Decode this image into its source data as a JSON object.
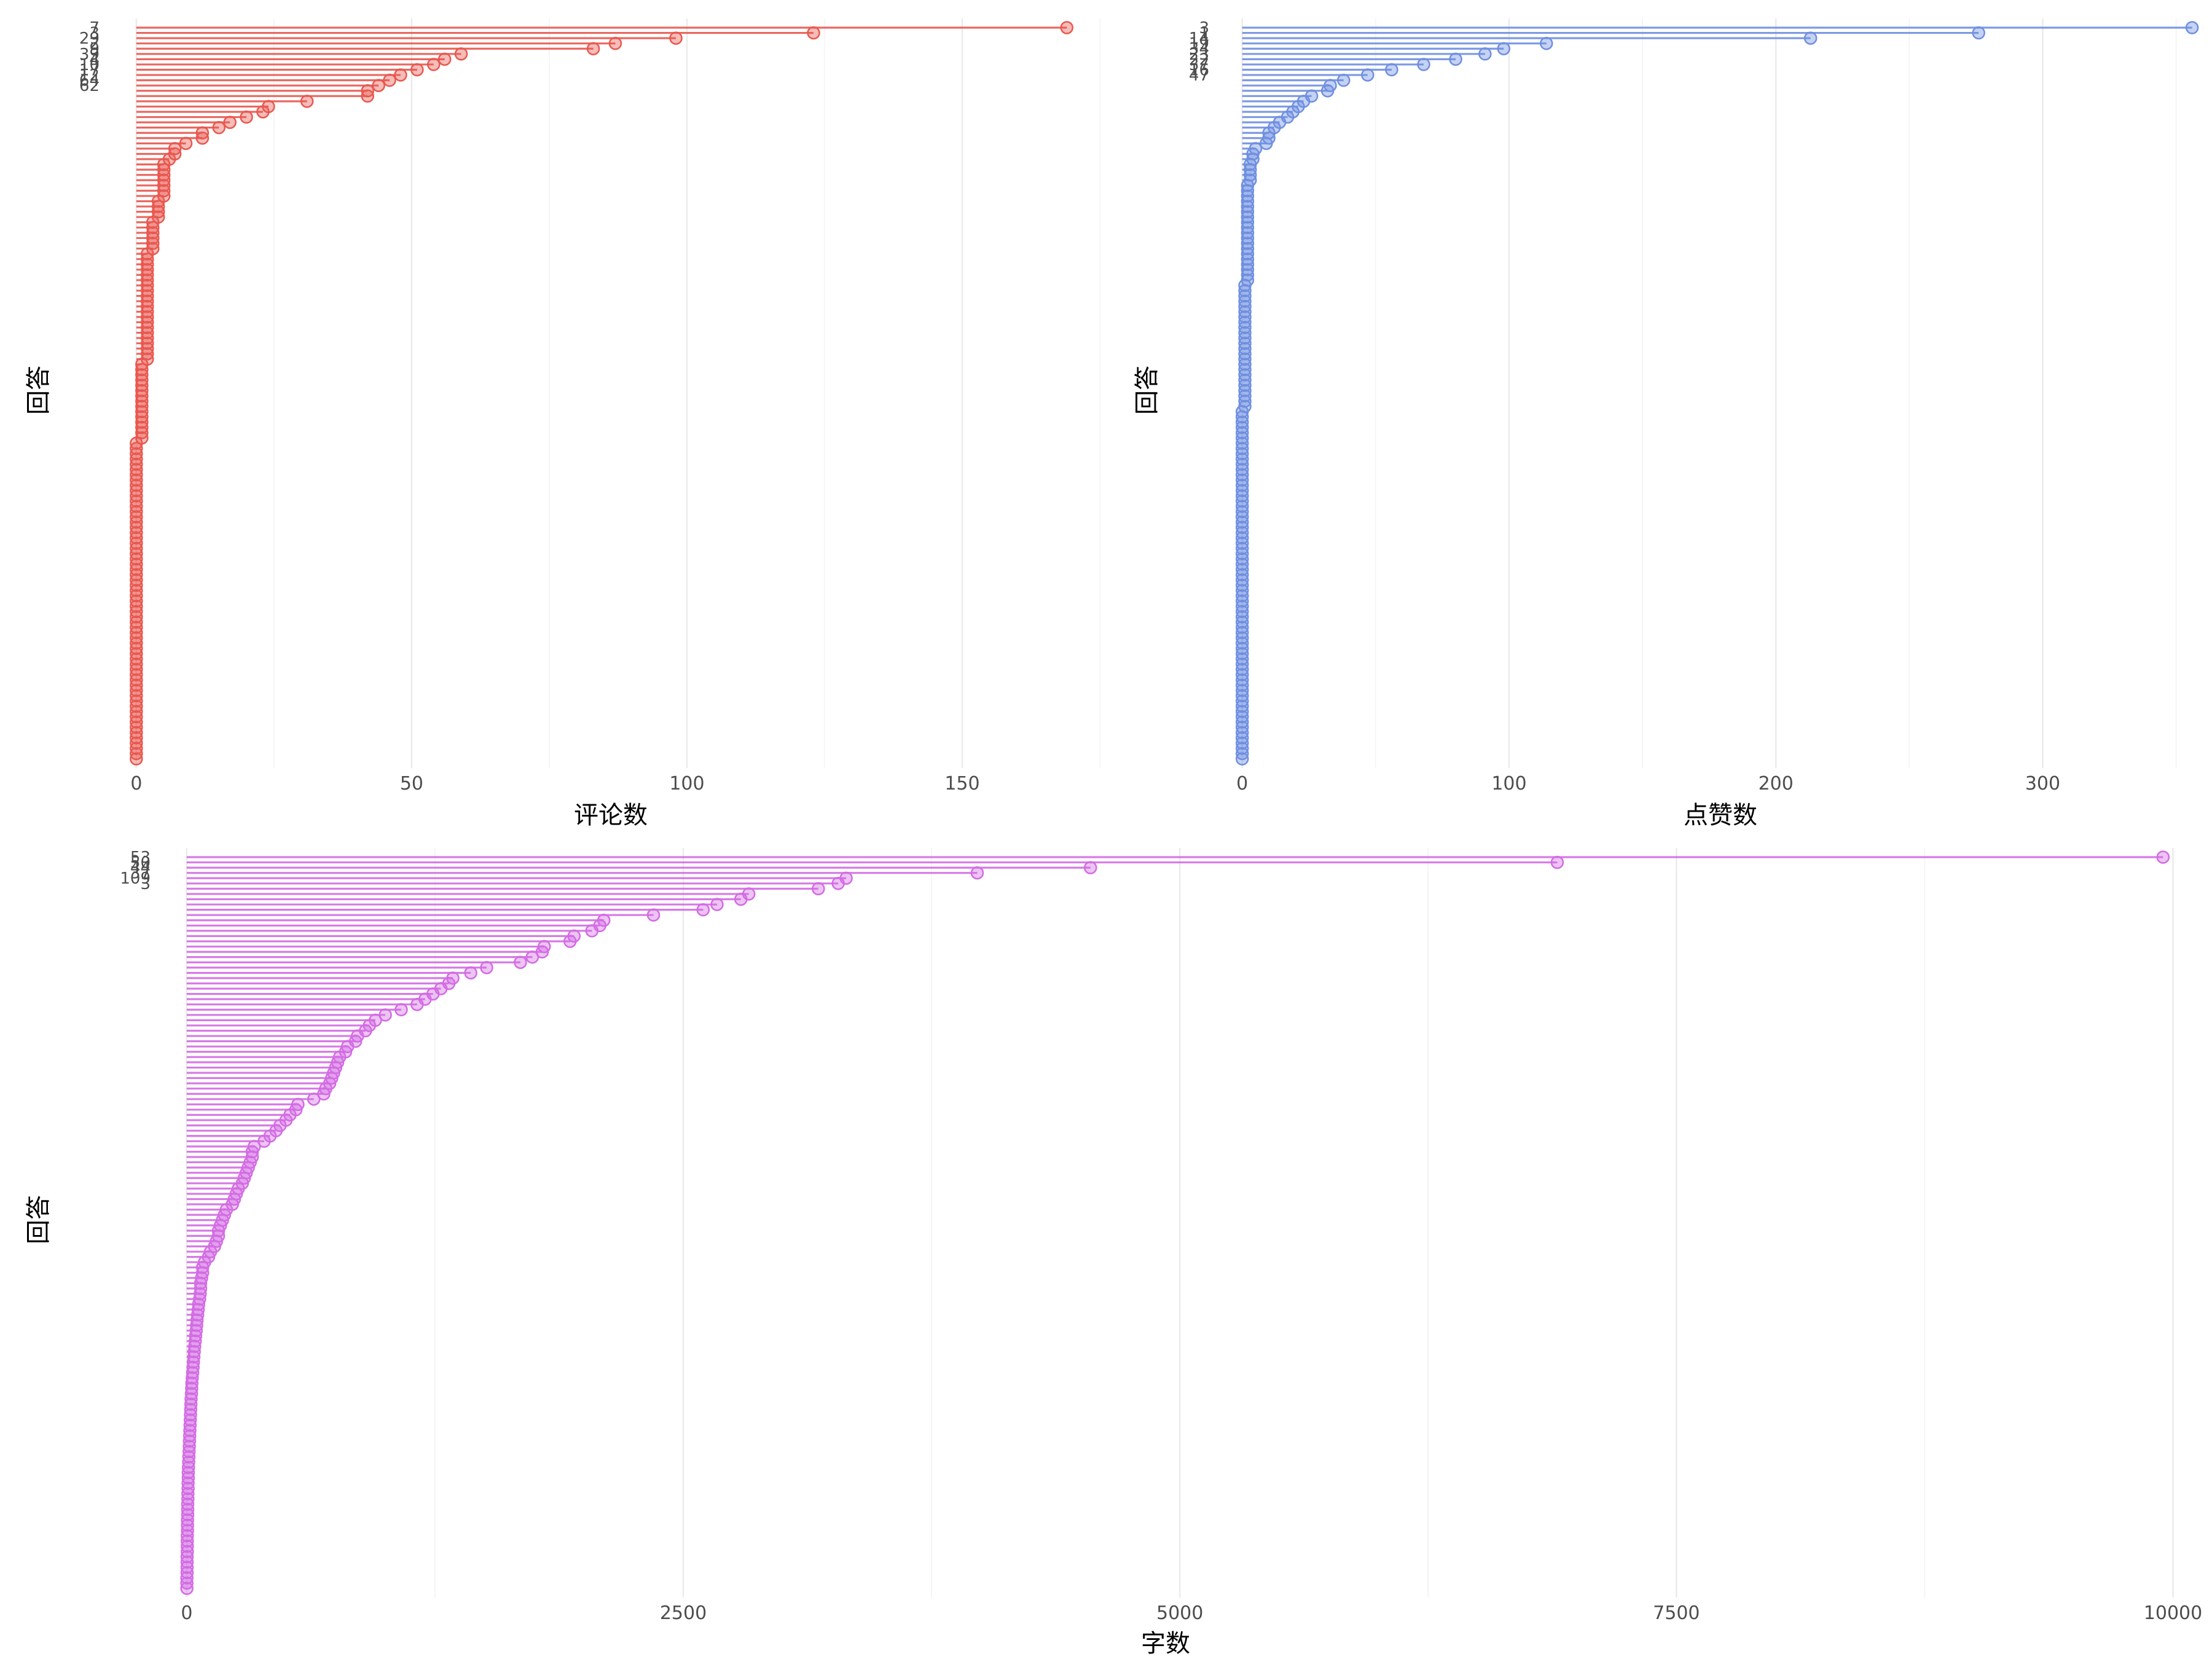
{
  "chart_data": [
    {
      "type": "lollipop",
      "orientation": "horizontal",
      "xlabel": "评论数",
      "ylabel": "回答",
      "xlim": [
        -3,
        175
      ],
      "xticks": [
        0,
        50,
        100,
        150
      ],
      "color": "#e8584f",
      "n_categories": 140,
      "shown_tick_labels": [
        "7",
        "3",
        "29",
        "2",
        "9",
        "39",
        "4",
        "10",
        "17",
        "12",
        "64",
        "62"
      ],
      "values": [
        169,
        123,
        98,
        87,
        83,
        59,
        56,
        54,
        51,
        48,
        46,
        44,
        42,
        42,
        31,
        24,
        23,
        20,
        17,
        15,
        12,
        12,
        9,
        7,
        7,
        6,
        5,
        5,
        5,
        5,
        5,
        5,
        5,
        4,
        4,
        4,
        4,
        3,
        3,
        3,
        3,
        3,
        3,
        2,
        2,
        2,
        2,
        2,
        2,
        2,
        2,
        2,
        2,
        2,
        2,
        2,
        2,
        2,
        2,
        2,
        2,
        2,
        2,
        2,
        1,
        1,
        1,
        1,
        1,
        1,
        1,
        1,
        1,
        1,
        1,
        1,
        1,
        1,
        1,
        0,
        0,
        0,
        0,
        0,
        0,
        0,
        0,
        0,
        0,
        0,
        0,
        0,
        0,
        0,
        0,
        0,
        0,
        0,
        0,
        0,
        0,
        0,
        0,
        0,
        0,
        0,
        0,
        0,
        0,
        0,
        0,
        0,
        0,
        0,
        0,
        0,
        0,
        0,
        0,
        0,
        0,
        0,
        0,
        0,
        0,
        0,
        0,
        0,
        0,
        0,
        0,
        0,
        0,
        0,
        0,
        0,
        0,
        0,
        0,
        0
      ]
    },
    {
      "type": "lollipop",
      "orientation": "horizontal",
      "xlabel": "点赞数",
      "ylabel": "回答",
      "xlim": [
        -5,
        360
      ],
      "xticks": [
        0,
        100,
        200,
        300
      ],
      "color": "#6f8fe0",
      "n_categories": 140,
      "shown_tick_labels": [
        "3",
        "1",
        "14",
        "19",
        "34",
        "23",
        "22",
        "37",
        "16",
        "47"
      ],
      "values": [
        356,
        276,
        213,
        114,
        98,
        91,
        80,
        68,
        56,
        47,
        38,
        33,
        32,
        26,
        23,
        21,
        19,
        17,
        14,
        12,
        10,
        10,
        9,
        5,
        4,
        4,
        3,
        3,
        3,
        3,
        2,
        2,
        2,
        2,
        2,
        2,
        2,
        2,
        2,
        2,
        2,
        2,
        2,
        2,
        2,
        2,
        2,
        2,
        2,
        1,
        1,
        1,
        1,
        1,
        1,
        1,
        1,
        1,
        1,
        1,
        1,
        1,
        1,
        1,
        1,
        1,
        1,
        1,
        1,
        1,
        1,
        1,
        1,
        0,
        0,
        0,
        0,
        0,
        0,
        0,
        0,
        0,
        0,
        0,
        0,
        0,
        0,
        0,
        0,
        0,
        0,
        0,
        0,
        0,
        0,
        0,
        0,
        0,
        0,
        0,
        0,
        0,
        0,
        0,
        0,
        0,
        0,
        0,
        0,
        0,
        0,
        0,
        0,
        0,
        0,
        0,
        0,
        0,
        0,
        0,
        0,
        0,
        0,
        0,
        0,
        0,
        0,
        0,
        0,
        0,
        0,
        0,
        0,
        0,
        0,
        0,
        0,
        0,
        0,
        0
      ]
    },
    {
      "type": "lollipop",
      "orientation": "horizontal",
      "xlabel": "字数",
      "ylabel": "回答",
      "xlim": [
        -80,
        10150
      ],
      "xticks": [
        0,
        2500,
        5000,
        7500,
        10000
      ],
      "color": "#d36be3",
      "n_categories": 140,
      "shown_tick_labels": [
        "53",
        "50",
        "44",
        "37",
        "109",
        "3"
      ],
      "values": [
        9950,
        6900,
        4550,
        3980,
        3320,
        3280,
        3180,
        2830,
        2790,
        2670,
        2600,
        2350,
        2100,
        2080,
        2040,
        1950,
        1930,
        1800,
        1790,
        1740,
        1680,
        1510,
        1430,
        1340,
        1320,
        1280,
        1240,
        1200,
        1160,
        1080,
        1000,
        950,
        920,
        900,
        860,
        850,
        810,
        800,
        770,
        760,
        750,
        740,
        730,
        720,
        700,
        690,
        640,
        560,
        550,
        520,
        500,
        470,
        450,
        420,
        390,
        340,
        330,
        330,
        320,
        310,
        300,
        290,
        280,
        260,
        250,
        240,
        230,
        200,
        190,
        180,
        170,
        160,
        160,
        150,
        140,
        120,
        110,
        90,
        80,
        80,
        75,
        70,
        70,
        68,
        65,
        60,
        58,
        55,
        52,
        50,
        48,
        45,
        43,
        40,
        38,
        36,
        34,
        32,
        30,
        28,
        26,
        25,
        24,
        22,
        21,
        20,
        19,
        18,
        17,
        16,
        15,
        14,
        13,
        12,
        11,
        10,
        9,
        8,
        8,
        7,
        7,
        6,
        6,
        5,
        5,
        5,
        4,
        4,
        4,
        3,
        3,
        3,
        3,
        2,
        2,
        2,
        2,
        1,
        1,
        1
      ]
    }
  ]
}
